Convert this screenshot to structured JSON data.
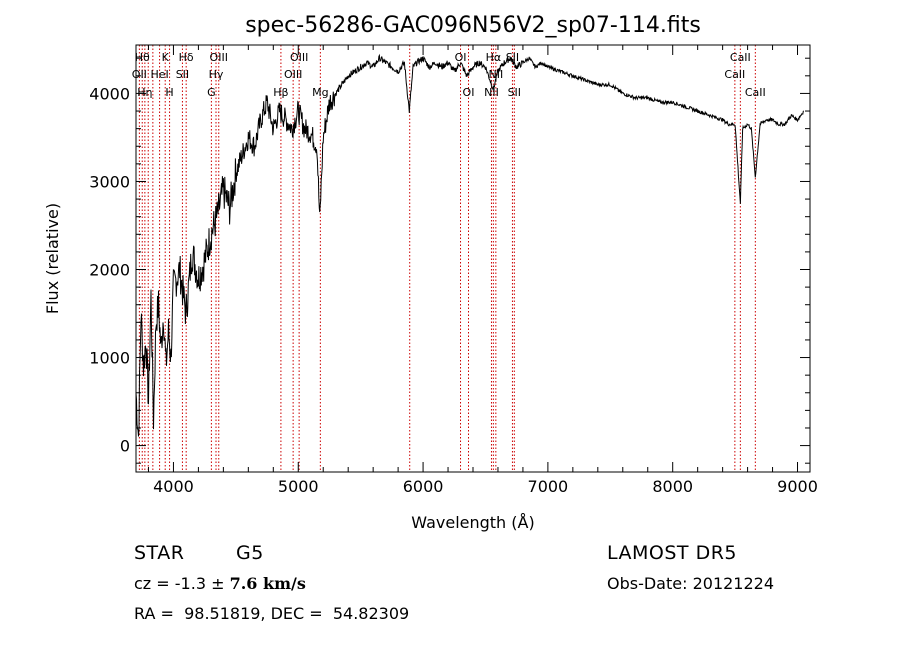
{
  "chart_data": {
    "type": "line",
    "title": "spec-56286-GAC096N56V2_sp07-114.fits",
    "xlabel": "Wavelength (Å)",
    "ylabel": "Flux (relative)",
    "xlim": [
      3700,
      9100
    ],
    "ylim": [
      -300,
      4550
    ],
    "xticks": [
      4000,
      5000,
      6000,
      7000,
      8000,
      9000
    ],
    "yticks": [
      0,
      1000,
      2000,
      3000,
      4000
    ],
    "grid": false,
    "series": [
      {
        "x": [
          3700,
          3720,
          3740,
          3760,
          3780,
          3800,
          3820,
          3840,
          3860,
          3880,
          3900,
          3920,
          3940,
          3960,
          3980,
          4000,
          4050,
          4100,
          4150,
          4200,
          4250,
          4300,
          4350,
          4400,
          4450,
          4500,
          4550,
          4600,
          4650,
          4700,
          4750,
          4800,
          4850,
          4900,
          4950,
          5000,
          5050,
          5100,
          5150,
          5172,
          5200,
          5250,
          5300,
          5350,
          5400,
          5450,
          5500,
          5550,
          5600,
          5650,
          5700,
          5750,
          5800,
          5850,
          5890,
          5920,
          5950,
          6000,
          6050,
          6100,
          6150,
          6200,
          6250,
          6300,
          6350,
          6400,
          6450,
          6500,
          6563,
          6600,
          6650,
          6700,
          6750,
          6800,
          6850,
          6900,
          6950,
          7000,
          7100,
          7200,
          7300,
          7400,
          7500,
          7600,
          7700,
          7800,
          7900,
          8000,
          8100,
          8200,
          8300,
          8400,
          8450,
          8500,
          8542,
          8560,
          8600,
          8630,
          8662,
          8700,
          8750,
          8800,
          8850,
          8900,
          8950,
          9000,
          9050
        ],
        "y": [
          600,
          100,
          1500,
          900,
          1200,
          500,
          1700,
          300,
          1400,
          1600,
          1100,
          1500,
          900,
          1300,
          1000,
          1800,
          2000,
          1500,
          2200,
          1900,
          2100,
          2400,
          2600,
          2900,
          2700,
          3100,
          3300,
          3500,
          3400,
          3700,
          3900,
          3600,
          3800,
          3700,
          3600,
          3800,
          3600,
          3550,
          3400,
          2550,
          3500,
          3900,
          4000,
          4100,
          4200,
          4250,
          4300,
          4350,
          4300,
          4400,
          4350,
          4300,
          4250,
          4350,
          3800,
          4300,
          4350,
          4400,
          4300,
          4350,
          4300,
          4350,
          4250,
          4350,
          4200,
          4300,
          4350,
          4300,
          4050,
          4250,
          4350,
          4400,
          4300,
          4350,
          4400,
          4300,
          4350,
          4300,
          4250,
          4200,
          4150,
          4100,
          4100,
          4000,
          3950,
          3950,
          3900,
          3900,
          3850,
          3800,
          3750,
          3700,
          3650,
          3650,
          2750,
          3600,
          3650,
          3600,
          3050,
          3650,
          3700,
          3700,
          3650,
          3650,
          3750,
          3700,
          3800
        ]
      }
    ],
    "line_markers": [
      {
        "x": 3727,
        "label": "OII",
        "row": 1
      },
      {
        "x": 3750,
        "label": "Hθ",
        "row": 0
      },
      {
        "x": 3771,
        "label": "Hη",
        "row": 2
      },
      {
        "x": 3798,
        "label": "",
        "row": 0
      },
      {
        "x": 3835,
        "label": "",
        "row": 0
      },
      {
        "x": 3889,
        "label": "HeI",
        "row": 1
      },
      {
        "x": 3934,
        "label": "K",
        "row": 0
      },
      {
        "x": 3969,
        "label": "H",
        "row": 2
      },
      {
        "x": 4072,
        "label": "SII",
        "row": 1
      },
      {
        "x": 4102,
        "label": "Hδ",
        "row": 0
      },
      {
        "x": 4304,
        "label": "G",
        "row": 2
      },
      {
        "x": 4341,
        "label": "Hγ",
        "row": 1
      },
      {
        "x": 4363,
        "label": "OIII",
        "row": 0
      },
      {
        "x": 4861,
        "label": "Hβ",
        "row": 2
      },
      {
        "x": 4959,
        "label": "OIII",
        "row": 1
      },
      {
        "x": 5007,
        "label": "OIII",
        "row": 0
      },
      {
        "x": 5177,
        "label": "Mg",
        "row": 2
      },
      {
        "x": 5893,
        "label": "",
        "row": 0
      },
      {
        "x": 6300,
        "label": "OI",
        "row": 0
      },
      {
        "x": 6364,
        "label": "OI",
        "row": 2
      },
      {
        "x": 6548,
        "label": "NII",
        "row": 2
      },
      {
        "x": 6563,
        "label": "Hα",
        "row": 0
      },
      {
        "x": 6583,
        "label": "NII",
        "row": 1
      },
      {
        "x": 6716,
        "label": "SII",
        "row": 0
      },
      {
        "x": 6731,
        "label": "SII",
        "row": 2
      },
      {
        "x": 8498,
        "label": "CaII",
        "row": 1
      },
      {
        "x": 8542,
        "label": "CaII",
        "row": 0
      },
      {
        "x": 8662,
        "label": "CaII",
        "row": 2
      }
    ],
    "colors": {
      "spectrum": "#000000",
      "marker_line": "#cc0000",
      "axis": "#000000"
    }
  },
  "info": {
    "class": "STAR",
    "subclass": "G5",
    "survey": "LAMOST DR5",
    "cz_prefix": "cz = -1.3 ± ",
    "cz_value": "7.6 km/s",
    "obs_date": "Obs-Date: 20121224",
    "radec": "RA =  98.51819, DEC =  54.82309"
  }
}
